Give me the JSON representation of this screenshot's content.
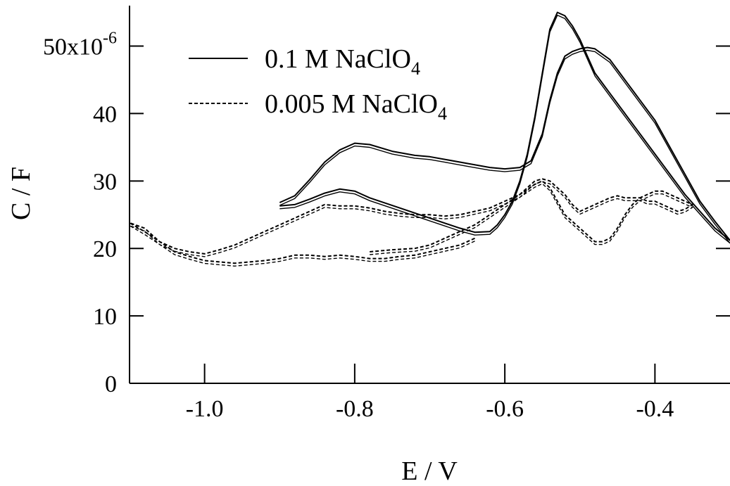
{
  "chart_data": {
    "type": "line",
    "xlabel": "E / V",
    "ylabel": "C / F",
    "xlim": [
      -1.1,
      -0.3
    ],
    "ylim": [
      0,
      5.6e-05
    ],
    "x_ticks": [
      -1.0,
      -0.8,
      -0.6,
      -0.4
    ],
    "x_tick_labels": [
      "-1.0",
      "-0.8",
      "-0.6",
      "-0.4"
    ],
    "y_ticks": [
      0,
      1e-05,
      2e-05,
      3e-05,
      4e-05,
      5e-05
    ],
    "y_tick_labels": [
      "0",
      "10",
      "20",
      "30",
      "40",
      "50x10"
    ],
    "y_multiplier_exponent": "-6",
    "grid": false,
    "legend_position": "top-left",
    "series": [
      {
        "name": "0.1 M NaClO4",
        "legend_main": "0.1 M NaClO",
        "legend_sub": "4",
        "style": "solid",
        "color": "#000000",
        "x": [
          -0.9,
          -0.88,
          -0.86,
          -0.84,
          -0.82,
          -0.8,
          -0.78,
          -0.75,
          -0.72,
          -0.7,
          -0.68,
          -0.65,
          -0.62,
          -0.6,
          -0.58,
          -0.565,
          -0.55,
          -0.54,
          -0.53,
          -0.52,
          -0.51,
          -0.5,
          -0.49,
          -0.48,
          -0.46,
          -0.44,
          -0.42,
          -0.4,
          -0.38,
          -0.36,
          -0.34,
          -0.32,
          -0.3,
          -0.32,
          -0.34,
          -0.36,
          -0.38,
          -0.4,
          -0.42,
          -0.44,
          -0.46,
          -0.48,
          -0.49,
          -0.5,
          -0.51,
          -0.52,
          -0.53,
          -0.54,
          -0.55,
          -0.56,
          -0.57,
          -0.58,
          -0.59,
          -0.6,
          -0.61,
          -0.62,
          -0.64,
          -0.66,
          -0.7,
          -0.74,
          -0.78,
          -0.8,
          -0.82,
          -0.84,
          -0.86,
          -0.88,
          -0.9
        ],
        "values": [
          2.68e-05,
          2.78e-05,
          3.02e-05,
          3.28e-05,
          3.46e-05,
          3.56e-05,
          3.54e-05,
          3.44e-05,
          3.38e-05,
          3.36e-05,
          3.32e-05,
          3.26e-05,
          3.2e-05,
          3.18e-05,
          3.2e-05,
          3.3e-05,
          3.7e-05,
          4.2e-05,
          4.6e-05,
          4.85e-05,
          4.92e-05,
          4.96e-05,
          4.98e-05,
          4.96e-05,
          4.8e-05,
          4.5e-05,
          4.2e-05,
          3.9e-05,
          3.5e-05,
          3.1e-05,
          2.7e-05,
          2.4e-05,
          2.12e-05,
          2.3e-05,
          2.55e-05,
          2.8e-05,
          3.1e-05,
          3.4e-05,
          3.7e-05,
          4e-05,
          4.3e-05,
          4.6e-05,
          4.85e-05,
          5.1e-05,
          5.3e-05,
          5.45e-05,
          5.5e-05,
          5.25e-05,
          4.6e-05,
          3.95e-05,
          3.4e-05,
          3e-05,
          2.7e-05,
          2.5e-05,
          2.35e-05,
          2.25e-05,
          2.24e-05,
          2.3e-05,
          2.45e-05,
          2.6e-05,
          2.75e-05,
          2.85e-05,
          2.88e-05,
          2.82e-05,
          2.73e-05,
          2.65e-05,
          2.63e-05
        ]
      },
      {
        "name": "0.005 M NaClO4",
        "legend_main": "0.005 M NaClO",
        "legend_sub": "4",
        "style": "dashed",
        "color": "#000000",
        "x": [
          -0.78,
          -0.75,
          -0.72,
          -0.7,
          -0.68,
          -0.66,
          -0.64,
          -0.62,
          -0.6,
          -0.58,
          -0.56,
          -0.55,
          -0.54,
          -0.53,
          -0.52,
          -0.51,
          -0.5,
          -0.49,
          -0.48,
          -0.47,
          -0.46,
          -0.45,
          -0.44,
          -0.43,
          -0.42,
          -0.41,
          -0.4,
          -0.39,
          -0.38,
          -0.37,
          -0.36,
          -0.35,
          -0.36,
          -0.37,
          -0.38,
          -0.39,
          -0.4,
          -0.41,
          -0.42,
          -0.43,
          -0.44,
          -0.45,
          -0.46,
          -0.47,
          -0.48,
          -0.49,
          -0.5,
          -0.51,
          -0.52,
          -0.53,
          -0.54,
          -0.55,
          -0.56,
          -0.57,
          -0.58,
          -0.6,
          -0.62,
          -0.64,
          -0.66,
          -0.68,
          -0.7,
          -0.72,
          -0.74,
          -0.76,
          -0.78,
          -0.8,
          -0.82,
          -0.84,
          -0.86,
          -0.88,
          -0.9,
          -0.92,
          -0.94,
          -0.96,
          -0.98,
          -1.0,
          -1.02,
          -1.04,
          -1.06,
          -1.08,
          -1.1,
          -1.08,
          -1.06,
          -1.04,
          -1.02,
          -1.0,
          -0.98,
          -0.96,
          -0.94,
          -0.92,
          -0.9,
          -0.88,
          -0.86,
          -0.84,
          -0.82,
          -0.8,
          -0.78,
          -0.76,
          -0.74,
          -0.72,
          -0.7,
          -0.68,
          -0.66,
          -0.64
        ],
        "values": [
          1.95e-05,
          1.98e-05,
          2e-05,
          2.05e-05,
          2.15e-05,
          2.25e-05,
          2.35e-05,
          2.5e-05,
          2.65e-05,
          2.8e-05,
          2.95e-05,
          3e-05,
          2.9e-05,
          2.7e-05,
          2.5e-05,
          2.4e-05,
          2.3e-05,
          2.2e-05,
          2.1e-05,
          2.1e-05,
          2.15e-05,
          2.3e-05,
          2.5e-05,
          2.65e-05,
          2.75e-05,
          2.8e-05,
          2.85e-05,
          2.85e-05,
          2.8e-05,
          2.75e-05,
          2.7e-05,
          2.65e-05,
          2.58e-05,
          2.55e-05,
          2.6e-05,
          2.65e-05,
          2.7e-05,
          2.7e-05,
          2.75e-05,
          2.75e-05,
          2.75e-05,
          2.78e-05,
          2.75e-05,
          2.7e-05,
          2.65e-05,
          2.6e-05,
          2.55e-05,
          2.65e-05,
          2.8e-05,
          2.9e-05,
          3e-05,
          3.03e-05,
          3e-05,
          2.9e-05,
          2.8e-05,
          2.7e-05,
          2.6e-05,
          2.55e-05,
          2.5e-05,
          2.48e-05,
          2.5e-05,
          2.5e-05,
          2.52e-05,
          2.55e-05,
          2.6e-05,
          2.63e-05,
          2.63e-05,
          2.65e-05,
          2.55e-05,
          2.45e-05,
          2.35e-05,
          2.25e-05,
          2.15e-05,
          2.05e-05,
          1.98e-05,
          1.92e-05,
          1.95e-05,
          2e-05,
          2.1e-05,
          2.25e-05,
          2.38e-05,
          2.3e-05,
          2.1e-05,
          1.95e-05,
          1.88e-05,
          1.82e-05,
          1.8e-05,
          1.78e-05,
          1.8e-05,
          1.82e-05,
          1.85e-05,
          1.9e-05,
          1.9e-05,
          1.88e-05,
          1.9e-05,
          1.88e-05,
          1.85e-05,
          1.85e-05,
          1.88e-05,
          1.9e-05,
          1.95e-05,
          2e-05,
          2.05e-05,
          2.15e-05
        ]
      }
    ]
  }
}
